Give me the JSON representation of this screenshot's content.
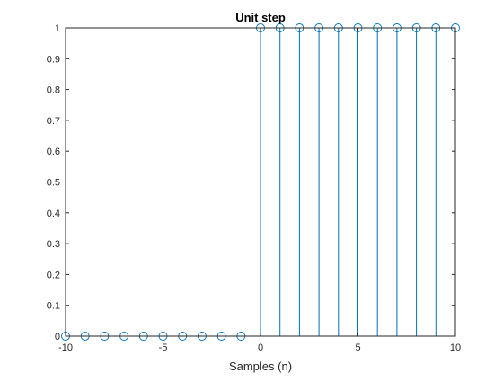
{
  "chart_data": {
    "type": "stem",
    "title": "Unit step",
    "xlabel": "Samples (n)",
    "ylabel": "",
    "xlim": [
      -10,
      10
    ],
    "ylim": [
      0,
      1
    ],
    "x_ticks": [
      -10,
      -5,
      0,
      5,
      10
    ],
    "y_ticks": [
      0,
      0.1,
      0.2,
      0.3,
      0.4,
      0.5,
      0.6,
      0.7,
      0.8,
      0.9,
      1
    ],
    "grid": false,
    "series": [
      {
        "x": [
          -10,
          -9,
          -8,
          -7,
          -6,
          -5,
          -4,
          -3,
          -2,
          -1,
          0,
          1,
          2,
          3,
          4,
          5,
          6,
          7,
          8,
          9,
          10
        ],
        "values": [
          0,
          0,
          0,
          0,
          0,
          0,
          0,
          0,
          0,
          0,
          1,
          1,
          1,
          1,
          1,
          1,
          1,
          1,
          1,
          1,
          1
        ],
        "color": "#0072BD"
      }
    ]
  }
}
